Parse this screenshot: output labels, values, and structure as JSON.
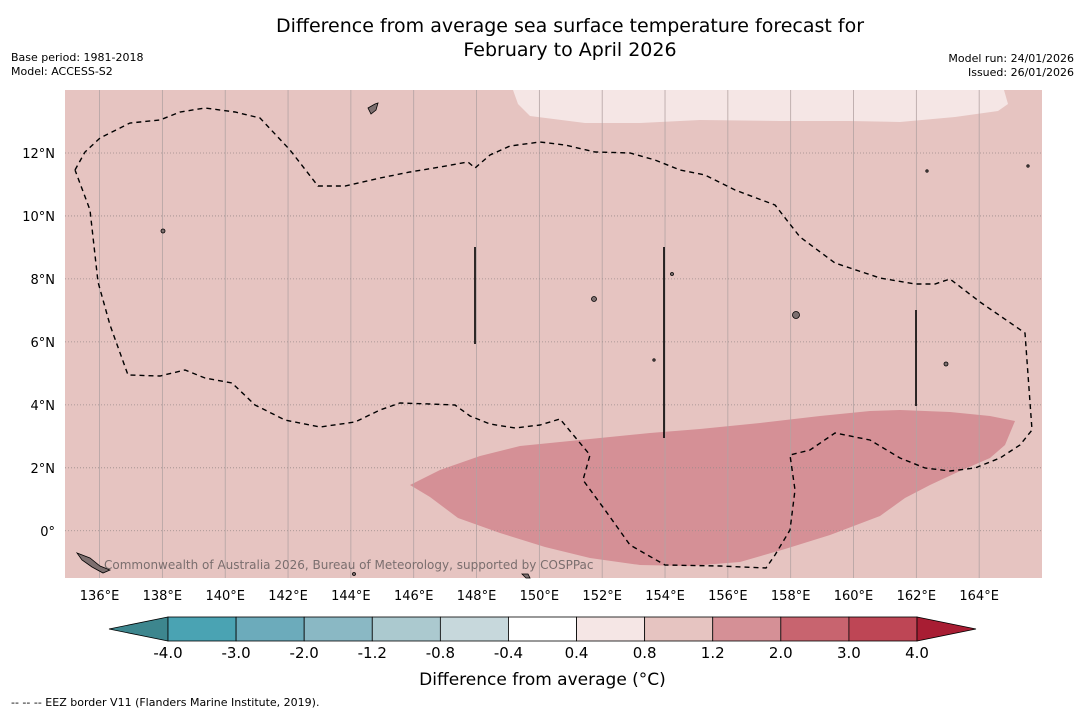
{
  "title": {
    "line1": "Difference from average sea surface temperature forecast for",
    "line2": "February to April 2026"
  },
  "meta_left": {
    "base_period": "Base period: 1981-2018",
    "model": "Model: ACCESS-S2"
  },
  "meta_right": {
    "model_run": "Model run: 24/01/2026",
    "issued": "Issued: 26/01/2026"
  },
  "map": {
    "credit": "Commonwealth of Australia 2026, Bureau of Meteorology, supported by COSPPac",
    "lon_labels": [
      "136°E",
      "138°E",
      "140°E",
      "142°E",
      "144°E",
      "146°E",
      "148°E",
      "150°E",
      "152°E",
      "154°E",
      "156°E",
      "158°E",
      "160°E",
      "162°E",
      "164°E"
    ],
    "lon_values": [
      136,
      138,
      140,
      142,
      144,
      146,
      148,
      150,
      152,
      154,
      156,
      158,
      160,
      162,
      164
    ],
    "lat_labels": [
      "12°N",
      "10°N",
      "8°N",
      "6°N",
      "4°N",
      "2°N",
      "0°"
    ],
    "lat_values": [
      12,
      10,
      8,
      6,
      4,
      2,
      0
    ],
    "lon_range": [
      134.9,
      166.0
    ],
    "lat_range": [
      -1.5,
      14.0
    ],
    "colors": {
      "background_anomaly": "#e6c4c1",
      "high_anomaly": "#d59096",
      "low_anomaly": "#f5e6e5",
      "eez_border": "#000000"
    }
  },
  "colorbar": {
    "ticks": [
      "-4.0",
      "-3.0",
      "-2.0",
      "-1.2",
      "-0.8",
      "-0.4",
      "0.4",
      "0.8",
      "1.2",
      "2.0",
      "3.0",
      "4.0"
    ],
    "colors": [
      "#3d868e",
      "#4aa3b3",
      "#6cabbb",
      "#8ab8c4",
      "#abc9cf",
      "#c7d8dc",
      "#ffffff",
      "#f5e6e5",
      "#e6c4c1",
      "#d59096",
      "#c8646f",
      "#be4655",
      "#a81d33"
    ],
    "label": "Difference from average (°C)"
  },
  "footnote": "--  --  -- EEZ border V11 (Flanders Marine Institute, 2019)."
}
